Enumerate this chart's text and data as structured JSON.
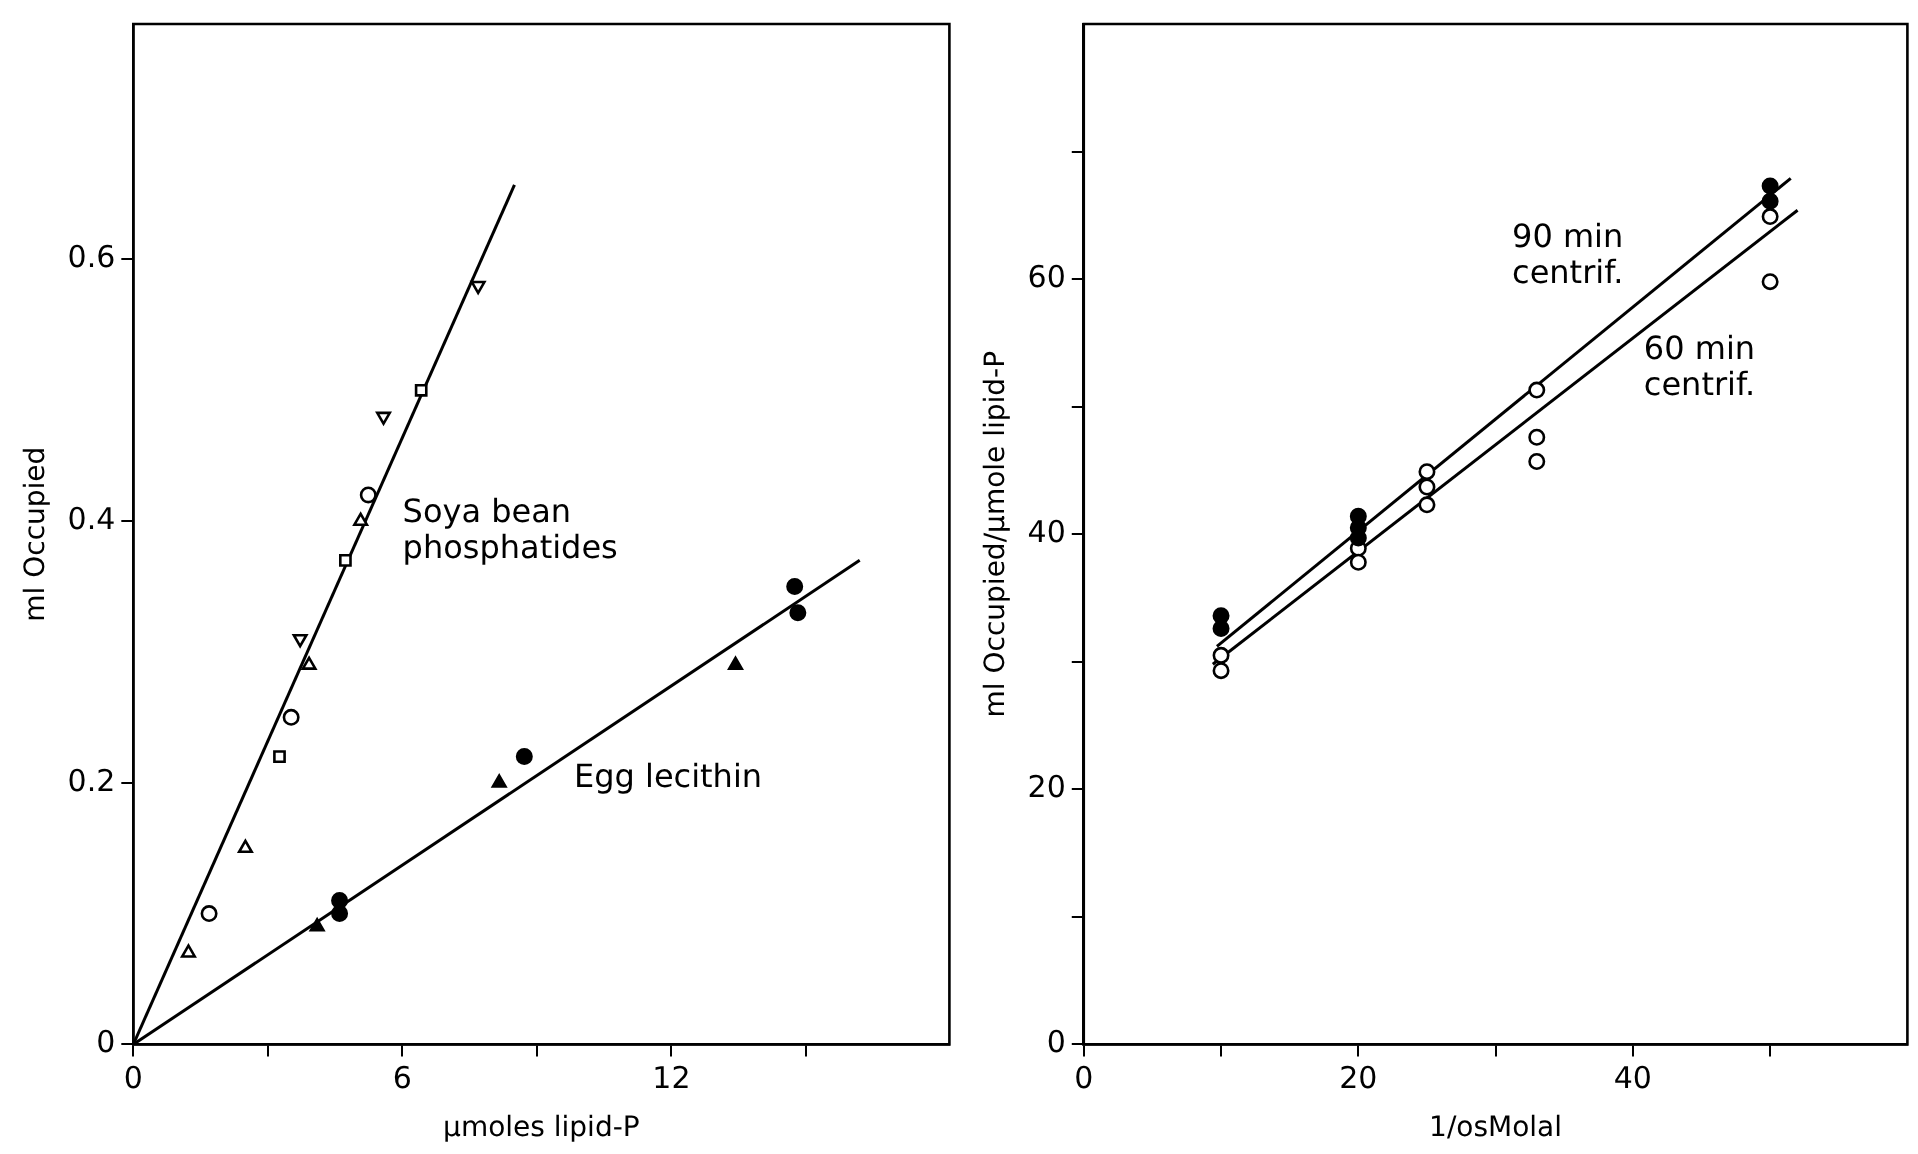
{
  "chart_data": [
    {
      "type": "scatter",
      "xlabel": "μmoles lipid-P",
      "ylabel": "ml Occupied",
      "xlim": [
        0,
        18.2
      ],
      "ylim": [
        0,
        0.78
      ],
      "xticks": [
        0,
        {
          "value": 3,
          "label": null
        },
        6,
        {
          "value": 9,
          "label": null
        },
        12,
        {
          "value": 15,
          "label": null
        }
      ],
      "yticks": [
        0,
        0.2,
        0.4,
        0.6
      ],
      "grid": false,
      "legend": false,
      "series": [
        {
          "color": "#ffffff",
          "marker": "triangle",
          "x": [
            1.23,
            2.5,
            3.92,
            5.07
          ],
          "values": [
            0.07,
            0.15,
            0.29,
            0.4
          ]
        },
        {
          "color": "#ffffff",
          "marker": "circle",
          "x": [
            1.69,
            3.52,
            5.24
          ],
          "values": [
            0.1,
            0.25,
            0.42
          ]
        },
        {
          "color": "#ffffff",
          "marker": "square",
          "x": [
            3.26,
            4.73,
            6.42
          ],
          "values": [
            0.22,
            0.37,
            0.5
          ]
        },
        {
          "color": "#ffffff",
          "marker": "triangle-down",
          "x": [
            3.72,
            5.58,
            7.69
          ],
          "values": [
            0.31,
            0.48,
            0.58
          ]
        },
        {
          "color": "#000000",
          "marker": "triangle",
          "x": [
            4.1,
            8.16,
            13.43
          ],
          "values": [
            0.09,
            0.2,
            0.29
          ]
        },
        {
          "color": "#000000",
          "marker": "circle",
          "x": [
            4.6,
            4.6,
            8.72,
            14.75,
            14.82
          ],
          "values": [
            0.11,
            0.1,
            0.22,
            0.35,
            0.33
          ]
        },
        {
          "type": "line",
          "color": "#000000",
          "marker": "none",
          "x": [
            0,
            8.5
          ],
          "values": [
            0,
            0.657
          ]
        },
        {
          "type": "line",
          "color": "#000000",
          "marker": "none",
          "x": [
            0,
            16.2
          ],
          "values": [
            0,
            0.37
          ]
        }
      ],
      "annotations": [
        "Soya bean\nphosphatides",
        "Egg lecithin"
      ]
    },
    {
      "type": "scatter",
      "xlabel": "1/osMolal",
      "ylabel": "ml Occupied/μmole lipid-P",
      "xlim": [
        0,
        60
      ],
      "ylim": [
        0,
        80
      ],
      "xticks": [
        0,
        {
          "value": 10,
          "label": null
        },
        20,
        {
          "value": 30,
          "label": null
        },
        40,
        {
          "value": 50,
          "label": null
        }
      ],
      "yticks": [
        0,
        {
          "value": 10,
          "label": null
        },
        20,
        {
          "value": 30,
          "label": null
        },
        40,
        {
          "value": 50,
          "label": null
        },
        60,
        {
          "value": 70,
          "label": null
        }
      ],
      "grid": false,
      "legend": false,
      "series": [
        {
          "color": "#000000",
          "marker": "circle",
          "x": [
            10,
            10,
            20,
            20,
            20,
            50,
            50
          ],
          "values": [
            33.6,
            32.6,
            41.4,
            40.5,
            39.7,
            67.3,
            66.1
          ]
        },
        {
          "color": "#ffffff",
          "marker": "circle",
          "x": [
            10,
            10,
            20,
            20,
            25,
            25,
            25,
            33,
            33,
            33,
            50,
            50
          ],
          "values": [
            30.5,
            29.3,
            38.9,
            37.8,
            44.9,
            43.7,
            42.3,
            51.3,
            47.6,
            45.7,
            64.9,
            59.8
          ]
        },
        {
          "type": "line",
          "color": "#000000",
          "marker": "none",
          "x": [
            9.7,
            51.5
          ],
          "values": [
            31.2,
            67.9
          ]
        },
        {
          "type": "line",
          "color": "#000000",
          "marker": "none",
          "x": [
            9.4,
            52
          ],
          "values": [
            29.8,
            65.4
          ]
        }
      ],
      "annotations": [
        "90 min\ncentrif.",
        "60 min\ncentrif."
      ]
    }
  ]
}
